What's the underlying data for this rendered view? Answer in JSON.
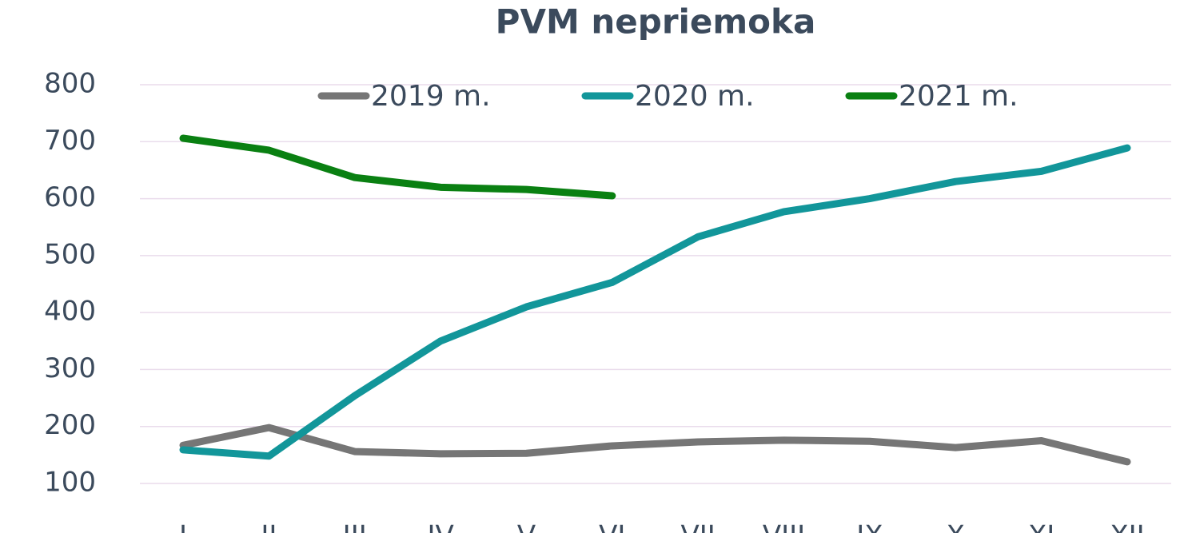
{
  "chart_data": {
    "type": "line",
    "title": "PVM nepriemoka",
    "categories": [
      "I",
      "II",
      "III",
      "IV",
      "V",
      "VI",
      "VII",
      "VIII",
      "IX",
      "X",
      "XI",
      "XII"
    ],
    "series": [
      {
        "name": "2019 m.",
        "color": "#767676",
        "values": [
          167,
          198,
          156,
          152,
          153,
          166,
          173,
          176,
          174,
          163,
          175,
          138
        ]
      },
      {
        "name": "2020 m.",
        "color": "#12969a",
        "values": [
          159,
          148,
          254,
          350,
          410,
          453,
          533,
          577,
          600,
          630,
          648,
          689
        ]
      },
      {
        "name": "2021 m.",
        "color": "#0a8012",
        "values": [
          706,
          685,
          637,
          620,
          616,
          605,
          null,
          null,
          null,
          null,
          null,
          null
        ]
      }
    ],
    "ylim": [
      100,
      800
    ],
    "yticks": [
      100,
      200,
      300,
      400,
      500,
      600,
      700,
      800
    ],
    "grid": true,
    "legend": "top"
  }
}
